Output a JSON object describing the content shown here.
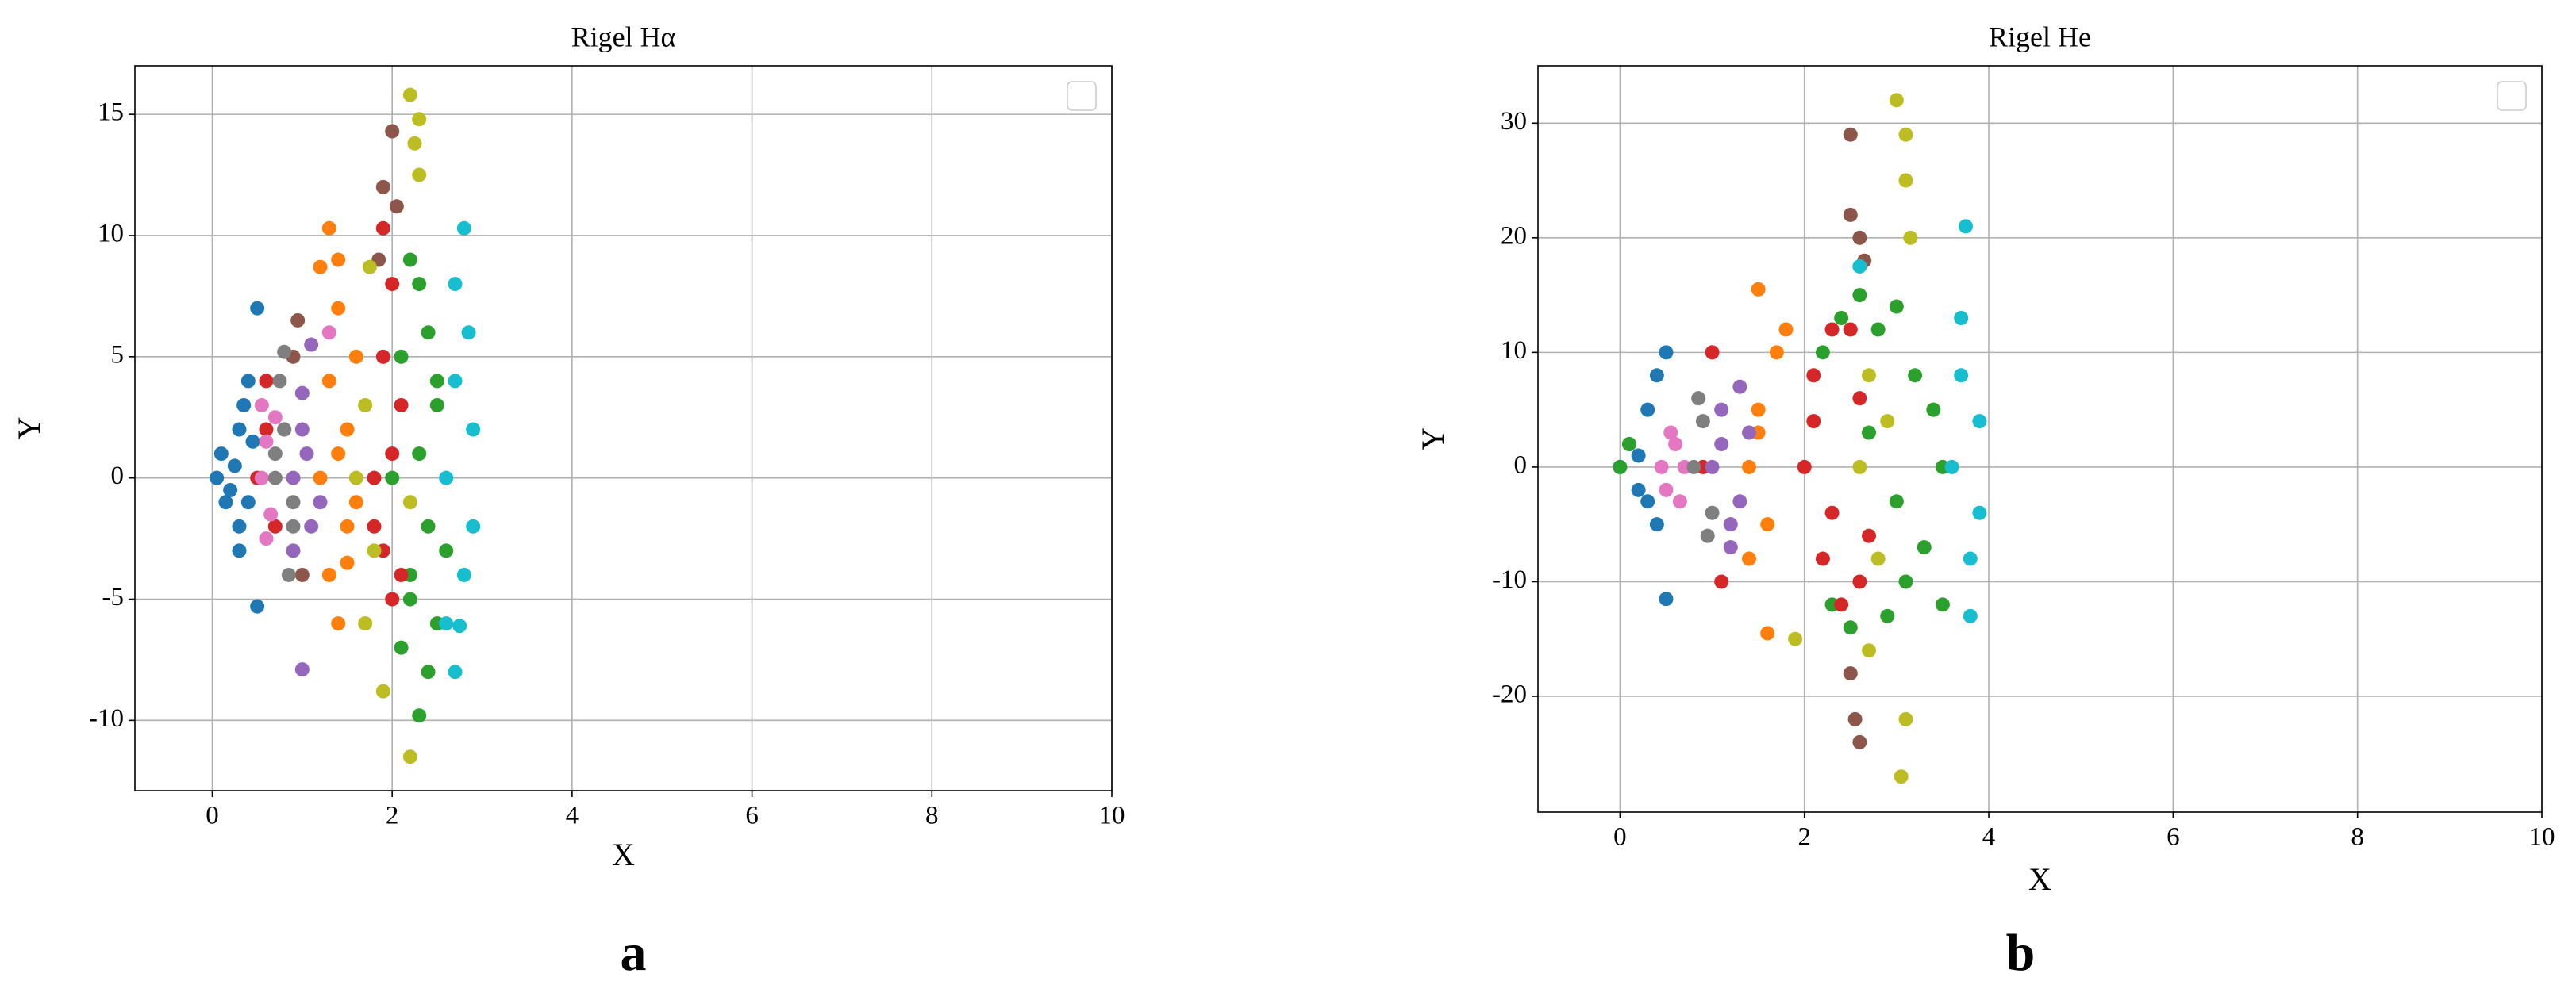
{
  "chart_data": [
    {
      "type": "scatter",
      "title": "Rigel Hα",
      "xlabel": "X",
      "ylabel": "Y",
      "panel_label": "a",
      "xlim": [
        -0.86,
        10
      ],
      "ylim": [
        -12.9,
        17.0
      ],
      "xticks": [
        0,
        2,
        4,
        6,
        8,
        10
      ],
      "yticks": [
        -10,
        -5,
        0,
        5,
        10,
        15
      ],
      "grid": true,
      "legend": "upper right",
      "series": [
        {
          "color": "#1f77b4",
          "x": [
            0.05,
            0.1,
            0.2,
            0.3,
            0.3,
            0.35,
            0.4,
            0.45,
            0.5,
            0.5,
            0.25,
            0.15,
            0.4,
            0.3
          ],
          "y": [
            0,
            1,
            -0.5,
            2,
            -2,
            3,
            -1,
            1.5,
            7,
            -5.3,
            0.5,
            -1,
            4,
            -3
          ]
        },
        {
          "color": "#ff7f0e",
          "x": [
            1.2,
            1.3,
            1.3,
            1.4,
            1.4,
            1.5,
            1.5,
            1.6,
            1.3,
            1.4,
            1.5,
            1.2,
            1.6,
            1.4
          ],
          "y": [
            0,
            4,
            -4,
            7,
            -6,
            2,
            -2,
            5,
            10.3,
            9,
            -3.5,
            8.7,
            -1,
            1
          ]
        },
        {
          "color": "#2ca02c",
          "x": [
            2.0,
            2.1,
            2.2,
            2.3,
            2.4,
            2.5,
            2.6,
            2.2,
            2.3,
            2.4,
            2.5,
            2.1,
            2.3,
            2.4,
            2.2,
            2.5
          ],
          "y": [
            0,
            5,
            -5,
            8,
            -8,
            3,
            -3,
            9,
            -9.8,
            6,
            -6,
            -7,
            1,
            -2,
            -4,
            4
          ]
        },
        {
          "color": "#d62728",
          "x": [
            0.5,
            0.6,
            0.7,
            0.6,
            1.8,
            1.9,
            2.0,
            2.1,
            1.9,
            2.0,
            1.8,
            2.1,
            1.9,
            2.0
          ],
          "y": [
            0,
            2,
            -2,
            4,
            0,
            5,
            -5,
            3,
            -3,
            8,
            -2,
            -4,
            10.3,
            1
          ]
        },
        {
          "color": "#9467bd",
          "x": [
            0.9,
            1.0,
            1.1,
            1.0,
            0.9,
            1.1,
            1.2,
            1.0,
            1.05
          ],
          "y": [
            0,
            2,
            -2,
            3.5,
            -3,
            5.5,
            -1,
            -7.9,
            1
          ]
        },
        {
          "color": "#8c564b",
          "x": [
            0.8,
            0.9,
            1.0,
            1.9,
            2.0,
            1.85,
            2.05,
            0.95
          ],
          "y": [
            2,
            5,
            -4,
            12,
            14.3,
            9,
            11.2,
            6.5
          ]
        },
        {
          "color": "#e377c2",
          "x": [
            0.55,
            0.6,
            0.65,
            0.7,
            0.6,
            0.55,
            1.3
          ],
          "y": [
            0,
            1.5,
            -1.5,
            2.5,
            -2.5,
            3,
            6
          ]
        },
        {
          "color": "#7f7f7f",
          "x": [
            0.7,
            0.8,
            0.9,
            0.75,
            0.85,
            0.8,
            0.9,
            0.7
          ],
          "y": [
            0,
            2,
            -2,
            4,
            -4,
            5.2,
            -1,
            1
          ]
        },
        {
          "color": "#bcbd22",
          "x": [
            1.6,
            1.7,
            1.8,
            1.7,
            2.2,
            2.3,
            2.25,
            2.3,
            2.2,
            1.9,
            1.75,
            2.2
          ],
          "y": [
            0,
            3,
            -3,
            -6,
            15.8,
            14.8,
            13.8,
            12.5,
            -11.5,
            -8.8,
            8.7,
            -1
          ]
        },
        {
          "color": "#17becf",
          "x": [
            2.6,
            2.7,
            2.8,
            2.9,
            2.7,
            2.8,
            2.6,
            2.9,
            2.75,
            2.85,
            2.7
          ],
          "y": [
            0,
            4,
            -4,
            2,
            8,
            10.3,
            -6,
            -2,
            -6.1,
            6,
            -8
          ]
        }
      ]
    },
    {
      "type": "scatter",
      "title": "Rigel He",
      "xlabel": "X",
      "ylabel": "Y",
      "panel_label": "b",
      "xlim": [
        -0.89,
        10
      ],
      "ylim": [
        -30.1,
        35.0
      ],
      "xticks": [
        0,
        2,
        4,
        6,
        8,
        10
      ],
      "yticks": [
        -20,
        -10,
        0,
        10,
        20,
        30
      ],
      "grid": true,
      "legend": "upper right",
      "series": [
        {
          "color": "#1f77b4",
          "x": [
            0,
            0.1,
            0.2,
            0.3,
            0.4,
            0.5,
            0.5,
            0.4,
            0.3,
            0.2
          ],
          "y": [
            0,
            2,
            -2,
            5,
            -5,
            10,
            -11.5,
            8,
            -3,
            1
          ]
        },
        {
          "color": "#ff7f0e",
          "x": [
            1.4,
            1.5,
            1.6,
            1.7,
            1.5,
            1.6,
            1.4,
            1.8,
            1.5
          ],
          "y": [
            0,
            5,
            -5,
            10,
            15.5,
            -14.5,
            -8,
            12,
            3
          ]
        },
        {
          "color": "#2ca02c",
          "x": [
            0,
            0.1,
            2.2,
            2.4,
            2.6,
            2.8,
            3.0,
            3.2,
            3.4,
            3.5,
            2.3,
            2.5,
            2.9,
            3.1,
            3.3,
            2.7,
            3.0,
            3.5
          ],
          "y": [
            0,
            2,
            10,
            13,
            15,
            12,
            14,
            8,
            5,
            0,
            -12,
            -14,
            -13,
            -10,
            -7,
            3,
            -3,
            -12
          ]
        },
        {
          "color": "#d62728",
          "x": [
            0.9,
            1.0,
            1.1,
            2.0,
            2.1,
            2.2,
            2.3,
            2.5,
            2.6,
            2.7,
            2.4,
            2.1,
            2.6,
            2.3
          ],
          "y": [
            0,
            10,
            -10,
            0,
            8,
            -8,
            12,
            12,
            6,
            -6,
            -12,
            4,
            -10,
            -4
          ]
        },
        {
          "color": "#9467bd",
          "x": [
            1.0,
            1.1,
            1.2,
            1.3,
            1.4,
            1.2,
            1.3,
            1.1
          ],
          "y": [
            0,
            5,
            -5,
            7,
            3,
            -7,
            -3,
            2
          ]
        },
        {
          "color": "#8c564b",
          "x": [
            2.5,
            2.5,
            2.6,
            2.55,
            2.6,
            2.5,
            2.65
          ],
          "y": [
            29,
            22,
            20,
            -22,
            -24,
            -18,
            18
          ]
        },
        {
          "color": "#e377c2",
          "x": [
            0.45,
            0.55,
            0.65,
            0.5,
            0.6,
            0.7
          ],
          "y": [
            0,
            3,
            -3,
            -2,
            2,
            0
          ]
        },
        {
          "color": "#7f7f7f",
          "x": [
            0.8,
            0.9,
            1.0,
            0.85,
            0.95
          ],
          "y": [
            0,
            4,
            -4,
            6,
            -6
          ]
        },
        {
          "color": "#bcbd22",
          "x": [
            2.6,
            2.7,
            2.8,
            3.0,
            3.1,
            3.1,
            3.15,
            3.05,
            3.1,
            2.7,
            1.9,
            2.9
          ],
          "y": [
            0,
            8,
            -8,
            32,
            29,
            25,
            20,
            -27,
            -22,
            -16,
            -15,
            4
          ]
        },
        {
          "color": "#17becf",
          "x": [
            3.6,
            3.7,
            3.8,
            3.9,
            3.7,
            3.75,
            3.8,
            3.9,
            2.6
          ],
          "y": [
            0,
            8,
            -8,
            4,
            13,
            21,
            -13,
            -4,
            17.5
          ]
        }
      ]
    }
  ]
}
